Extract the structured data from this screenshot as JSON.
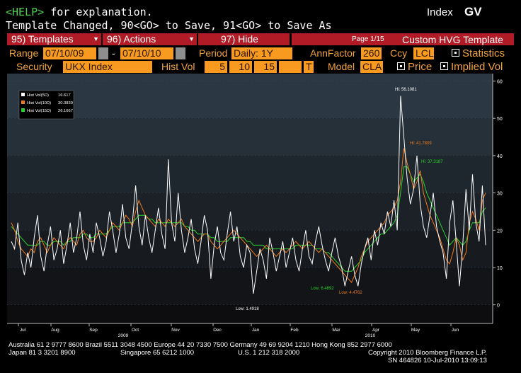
{
  "header": {
    "help_key": "<HELP>",
    "help_rest": " for explanation.",
    "index_label": "Index",
    "function_label": "GV",
    "message": "Template Changed, 90<GO> to Save, 91<GO> to Save As"
  },
  "menu": {
    "templates": "95) Templates",
    "actions": "96) Actions",
    "hide": "97) Hide",
    "page": "Page 1/15",
    "template_name": "Custom HVG Template"
  },
  "params": {
    "range_label": "Range",
    "start_date": "07/10/09",
    "dash": "-",
    "end_date": "07/10/10",
    "period_label": "Period",
    "period_value": "Daily: 1Y",
    "annfactor_label": "AnnFactor",
    "annfactor_value": "260",
    "ccy_label": "Ccy",
    "ccy_value": "LCL",
    "statistics_label": "Statistics",
    "security_label": "Security",
    "security_value": "UKX Index",
    "histvol_label": "Hist Vol",
    "hv1": "5",
    "hv2": "10",
    "hv3": "15",
    "hv_t": "T",
    "model_label": "Model",
    "model_value": "CLA",
    "price_label": "Price",
    "implied_label": "Implied Vol"
  },
  "chart_data": {
    "type": "line",
    "yticks": [
      "0",
      "10",
      "20",
      "30",
      "40",
      "50",
      "60"
    ],
    "ylim": [
      -5,
      62
    ],
    "xtick_labels": [
      "Jul",
      "Aug",
      "Sep",
      "Oct",
      "Nov",
      "Dec",
      "Jan",
      "Feb",
      "Mar",
      "Apr",
      "May",
      "Jun"
    ],
    "year_labels": [
      "2009",
      "2010"
    ],
    "legend": [
      {
        "name": "Hist Vol(5D)",
        "value": "16.617",
        "color": "#ffffff"
      },
      {
        "name": "Hist Vol(10D)",
        "value": "30.3839",
        "color": "#f07a1e"
      },
      {
        "name": "Hist Vol(15D)",
        "value": "26.1667",
        "color": "#29d12a"
      }
    ],
    "annotations": [
      {
        "text": "Hi: 56.1081",
        "color": "#ffffff"
      },
      {
        "text": "Hi: 41.7809",
        "color": "#f07a1e"
      },
      {
        "text": "Hi: 37.3187",
        "color": "#29d12a"
      },
      {
        "text": "Low: 1.4918",
        "color": "#ffffff"
      },
      {
        "text": "Low: 6.4892",
        "color": "#29d12a"
      },
      {
        "text": "Low: 4.4762",
        "color": "#f07a1e"
      }
    ],
    "series": [
      {
        "name": "Hist Vol(5D)",
        "color": "#ffffff",
        "values": [
          17,
          15,
          22,
          12,
          8,
          14,
          10,
          18,
          24,
          13,
          9,
          16,
          21,
          12,
          15,
          20,
          11,
          16,
          22,
          14,
          18,
          25,
          16,
          12,
          19,
          14,
          22,
          18,
          13,
          17,
          25,
          20,
          14,
          19,
          27,
          18,
          15,
          22,
          32,
          21,
          16,
          24,
          18,
          14,
          20,
          26,
          19,
          15,
          39,
          22,
          17,
          30,
          20,
          14,
          18,
          23,
          15,
          11,
          17,
          24,
          20,
          7,
          16,
          21,
          14,
          12,
          19,
          25,
          17,
          21,
          13,
          10,
          16,
          14,
          3,
          9,
          15,
          12,
          7,
          18,
          14,
          9,
          13,
          17,
          10,
          14,
          18,
          12,
          9,
          15,
          20,
          13,
          11,
          17,
          21,
          16,
          12,
          9,
          14,
          18,
          13,
          10,
          5,
          9,
          13,
          8,
          5,
          11,
          15,
          18,
          12,
          20,
          16,
          22,
          19,
          25,
          21,
          28,
          20,
          56,
          45,
          34,
          27,
          31,
          40,
          27,
          21,
          18,
          24,
          30,
          21,
          17,
          14,
          7,
          22,
          28,
          17,
          5,
          16,
          31,
          20,
          35,
          22,
          17,
          32,
          16
        ]
      },
      {
        "name": "Hist Vol(10D)",
        "color": "#f07a1e",
        "values": [
          22,
          20,
          17,
          15,
          14,
          13,
          15,
          14,
          17,
          18,
          16,
          14,
          16,
          18,
          17,
          16,
          15,
          17,
          18,
          17,
          16,
          19,
          20,
          18,
          17,
          17,
          18,
          20,
          19,
          18,
          20,
          22,
          21,
          20,
          22,
          24,
          23,
          21,
          25,
          28,
          26,
          24,
          23,
          22,
          21,
          23,
          22,
          21,
          23,
          22,
          21,
          22,
          23,
          21,
          20,
          19,
          18,
          17,
          18,
          19,
          19,
          17,
          16,
          15,
          16,
          17,
          18,
          19,
          20,
          19,
          18,
          17,
          16,
          15,
          14,
          13,
          14,
          15,
          16,
          15,
          14,
          13,
          14,
          15,
          14,
          15,
          16,
          17,
          16,
          15,
          16,
          17,
          16,
          15,
          14,
          15,
          14,
          13,
          12,
          11,
          10,
          9,
          8,
          7,
          6,
          8,
          10,
          13,
          15,
          17,
          18,
          19,
          20,
          21,
          22,
          24,
          25,
          26,
          28,
          33,
          42,
          38,
          35,
          31,
          33,
          36,
          30,
          27,
          24,
          22,
          20,
          18,
          15,
          12,
          11,
          14,
          18,
          16,
          12,
          14,
          22,
          25,
          23,
          20,
          28,
          30
        ]
      },
      {
        "name": "Hist Vol(15D)",
        "color": "#29d12a",
        "values": [
          21,
          20,
          19,
          18,
          17,
          16,
          16,
          16,
          16,
          17,
          17,
          16,
          16,
          17,
          17,
          17,
          16,
          17,
          17,
          18,
          18,
          18,
          19,
          19,
          18,
          18,
          19,
          19,
          19,
          19,
          20,
          21,
          21,
          21,
          22,
          22,
          22,
          22,
          23,
          24,
          24,
          24,
          23,
          23,
          22,
          22,
          22,
          22,
          22,
          22,
          22,
          22,
          22,
          21,
          21,
          20,
          20,
          19,
          19,
          19,
          19,
          18,
          18,
          17,
          17,
          17,
          17,
          18,
          18,
          18,
          18,
          18,
          17,
          17,
          16,
          16,
          16,
          16,
          15,
          15,
          15,
          15,
          15,
          15,
          15,
          15,
          15,
          16,
          16,
          16,
          16,
          16,
          16,
          15,
          15,
          15,
          14,
          14,
          13,
          12,
          11,
          10,
          9,
          9,
          9,
          10,
          11,
          12,
          14,
          15,
          16,
          17,
          18,
          19,
          19,
          20,
          21,
          22,
          24,
          30,
          37,
          37,
          35,
          33,
          34,
          35,
          33,
          30,
          28,
          26,
          24,
          22,
          20,
          18,
          16,
          17,
          18,
          17,
          16,
          17,
          20,
          22,
          22,
          22,
          25,
          26
        ]
      }
    ]
  },
  "footer": {
    "line1": "Australia 61 2 9777 8600 Brazil 5511 3048 4500 Europe 44 20 7330 7500 Germany 49 69 9204 1210 Hong Kong 852 2977 6000",
    "line2a": "Japan 81 3 3201 8900",
    "line2b": "Singapore 65 6212 1000",
    "line2c": "U.S. 1 212 318 2000",
    "line2d": "Copyright 2010 Bloomberg Finance L.P.",
    "line3": "SN 464826 10-Jul-2010 13:09:13"
  }
}
